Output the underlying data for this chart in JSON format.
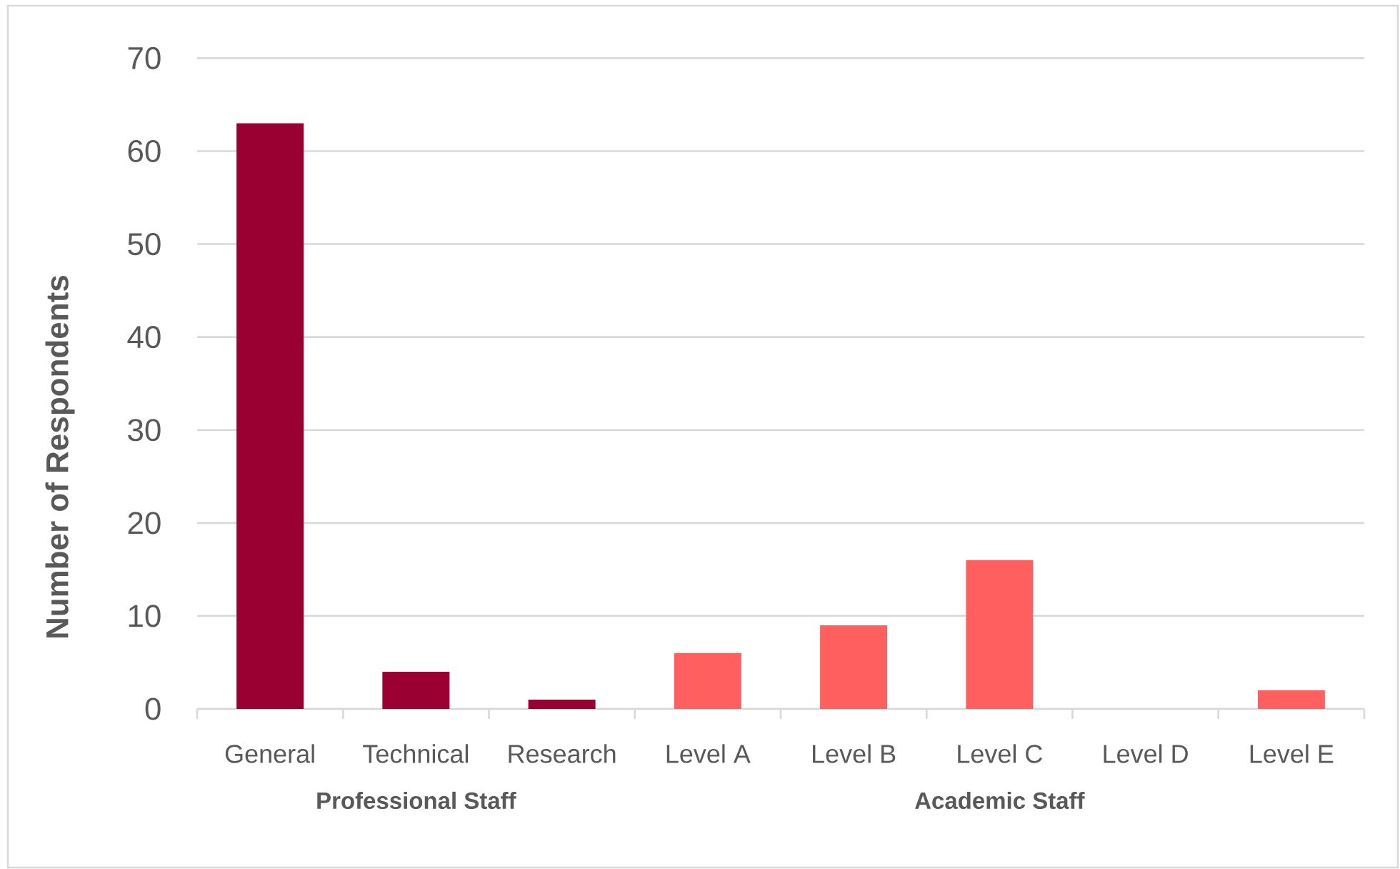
{
  "chart_data": {
    "type": "bar",
    "ylabel": "Number of Respondents",
    "categories": [
      "General",
      "Technical",
      "Research",
      "Level A",
      "Level B",
      "Level C",
      "Level D",
      "Level E"
    ],
    "values": [
      63,
      4,
      1,
      6,
      9,
      16,
      0,
      2
    ],
    "colors": [
      "#9b0033",
      "#9b0033",
      "#9b0033",
      "#ff5f5f",
      "#ff5f5f",
      "#ff5f5f",
      "#ff5f5f",
      "#ff5f5f"
    ],
    "annotations": [
      "Professional Staff",
      "Academic Staff"
    ],
    "ylim": [
      0,
      70
    ],
    "yticks": [
      0,
      10,
      20,
      30,
      40,
      50,
      60,
      70
    ],
    "grid": "y",
    "legend": false
  }
}
